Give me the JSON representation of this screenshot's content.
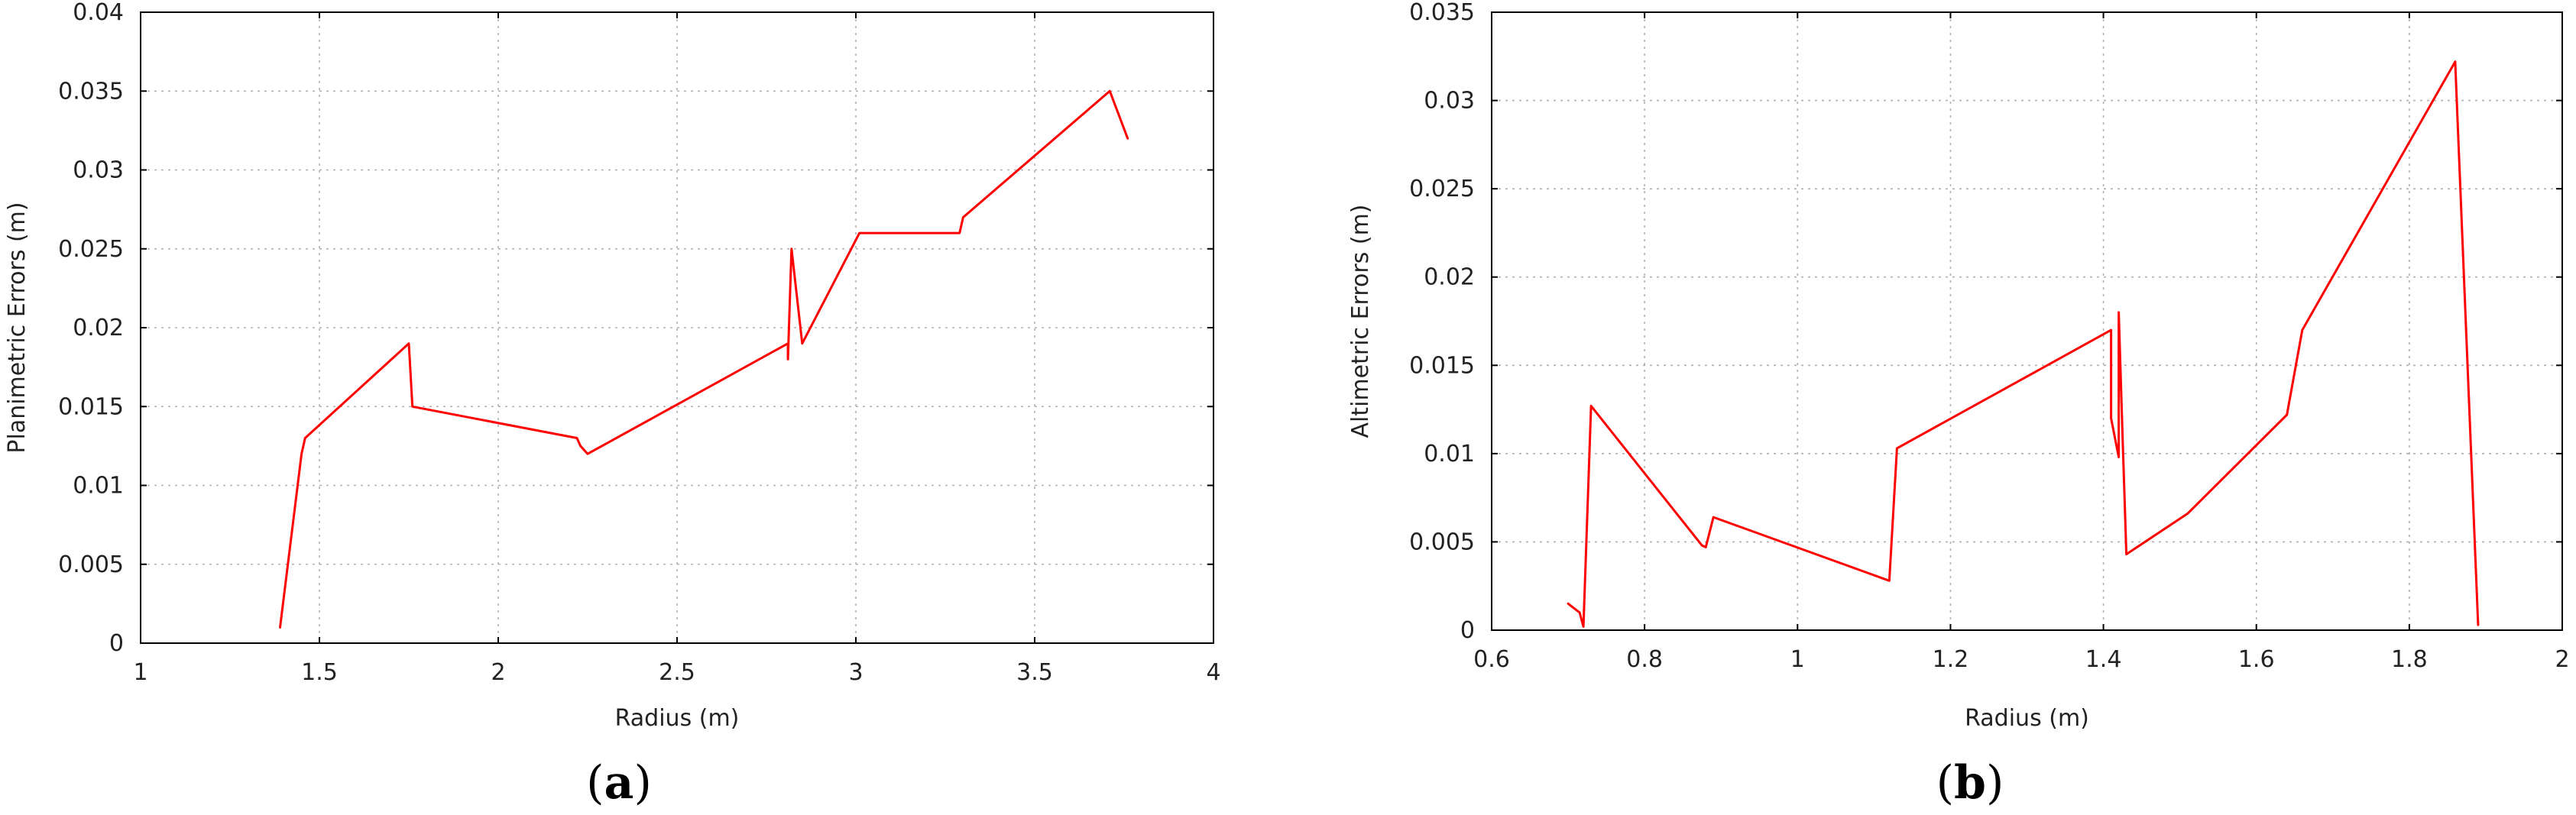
{
  "chart_data": [
    {
      "type": "line",
      "panel_label": "a",
      "title": "",
      "xlabel": "Radius (m)",
      "ylabel": "Planimetric Errors (m)",
      "xlim": [
        1,
        4
      ],
      "ylim": [
        0,
        0.04
      ],
      "xticks": [
        1,
        1.5,
        2,
        2.5,
        3,
        3.5,
        4
      ],
      "xtick_labels": [
        "1",
        "1.5",
        "2",
        "2.5",
        "3",
        "3.5",
        "4"
      ],
      "yticks": [
        0,
        0.005,
        0.01,
        0.015,
        0.02,
        0.025,
        0.03,
        0.035,
        0.04
      ],
      "ytick_labels": [
        "0",
        "0.005",
        "0.01",
        "0.015",
        "0.02",
        "0.025",
        "0.03",
        "0.035",
        "0.04"
      ],
      "grid": true,
      "line_color": "#ff0000",
      "x": [
        1.39,
        1.45,
        1.46,
        1.75,
        1.76,
        2.22,
        2.23,
        2.25,
        2.81,
        2.81,
        2.82,
        2.85,
        3.01,
        3.29,
        3.3,
        3.71,
        3.76
      ],
      "y": [
        0.001,
        0.012,
        0.013,
        0.019,
        0.015,
        0.013,
        0.0125,
        0.012,
        0.019,
        0.018,
        0.025,
        0.019,
        0.026,
        0.026,
        0.027,
        0.035,
        0.032
      ]
    },
    {
      "type": "line",
      "panel_label": "b",
      "title": "",
      "xlabel": "Radius (m)",
      "ylabel": "Altimetric Errors (m)",
      "xlim": [
        0.6,
        2
      ],
      "ylim": [
        0,
        0.035
      ],
      "xticks": [
        0.6,
        0.8,
        1,
        1.2,
        1.4,
        1.6,
        1.8,
        2
      ],
      "xtick_labels": [
        "0.6",
        "0.8",
        "1",
        "1.2",
        "1.4",
        "1.6",
        "1.8",
        "2"
      ],
      "yticks": [
        0,
        0.005,
        0.01,
        0.015,
        0.02,
        0.025,
        0.03,
        0.035
      ],
      "ytick_labels": [
        "0",
        "0.005",
        "0.01",
        "0.015",
        "0.02",
        "0.025",
        "0.03",
        "0.035"
      ],
      "grid": true,
      "line_color": "#ff0000",
      "x": [
        0.7,
        0.715,
        0.72,
        0.73,
        0.875,
        0.88,
        0.89,
        1.12,
        1.13,
        1.41,
        1.41,
        1.42,
        1.42,
        1.425,
        1.43,
        1.51,
        1.64,
        1.66,
        1.86,
        1.89
      ],
      "y": [
        0.0015,
        0.001,
        0.0002,
        0.0127,
        0.0048,
        0.0047,
        0.0064,
        0.0028,
        0.0103,
        0.017,
        0.012,
        0.0098,
        0.018,
        0.011,
        0.0043,
        0.0066,
        0.0122,
        0.017,
        0.0322,
        0.0003
      ]
    }
  ]
}
